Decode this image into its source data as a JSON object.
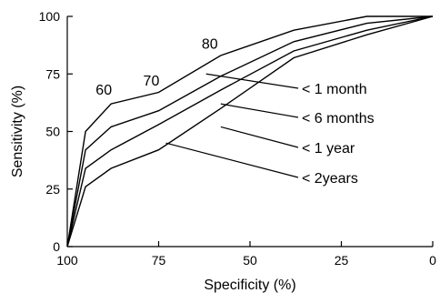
{
  "chart_data": {
    "type": "line",
    "title": "",
    "xlabel": "Specificity (%)",
    "ylabel": "Sensitivity (%)",
    "xlim": [
      100,
      0
    ],
    "ylim": [
      0,
      100
    ],
    "x_reversed": true,
    "xticks": [
      100,
      75,
      50,
      25,
      0
    ],
    "yticks": [
      0,
      25,
      50,
      75,
      100
    ],
    "grid": false,
    "legend_position": "right",
    "series": [
      {
        "name": "< 1 month",
        "points": [
          [
            100,
            0
          ],
          [
            95,
            50
          ],
          [
            88,
            62
          ],
          [
            75,
            67
          ],
          [
            58,
            83
          ],
          [
            38,
            94
          ],
          [
            18,
            100
          ],
          [
            0,
            100
          ]
        ]
      },
      {
        "name": "< 6 months",
        "points": [
          [
            100,
            0
          ],
          [
            95,
            42
          ],
          [
            88,
            52
          ],
          [
            75,
            59
          ],
          [
            58,
            74
          ],
          [
            38,
            89
          ],
          [
            18,
            97
          ],
          [
            0,
            100
          ]
        ]
      },
      {
        "name": "< 1 year",
        "points": [
          [
            100,
            0
          ],
          [
            95,
            34
          ],
          [
            88,
            42
          ],
          [
            75,
            53
          ],
          [
            58,
            68
          ],
          [
            38,
            85
          ],
          [
            18,
            94
          ],
          [
            0,
            100
          ]
        ]
      },
      {
        "name": "< 2years",
        "points": [
          [
            100,
            0
          ],
          [
            95,
            26
          ],
          [
            88,
            34
          ],
          [
            75,
            42
          ],
          [
            58,
            60
          ],
          [
            38,
            82
          ],
          [
            18,
            92
          ],
          [
            0,
            100
          ]
        ]
      }
    ],
    "annotations": [
      {
        "text": "60",
        "x": 90,
        "y": 66
      },
      {
        "text": "70",
        "x": 77,
        "y": 70
      },
      {
        "text": "80",
        "x": 61,
        "y": 86
      }
    ]
  }
}
